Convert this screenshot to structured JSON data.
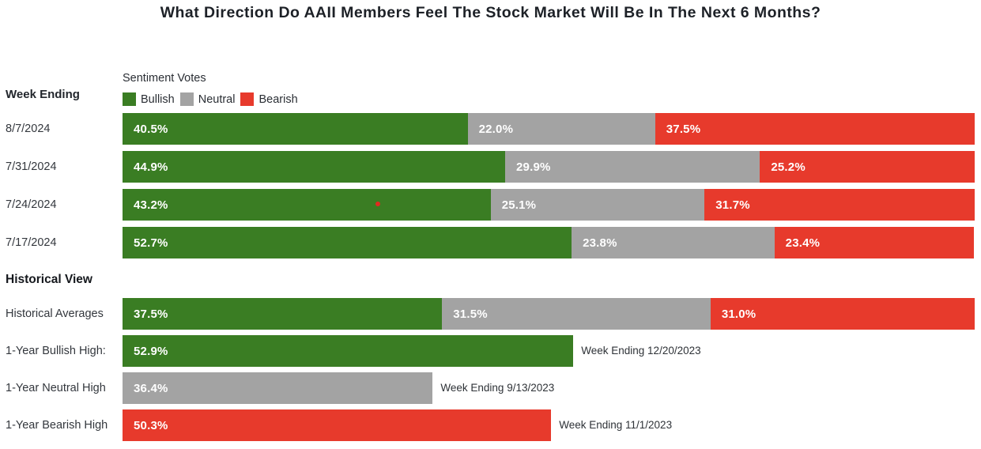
{
  "title": "What Direction Do AAII Members Feel The Stock Market Will Be In The Next 6 Months?",
  "left_column": {
    "week_ending_header": "Week Ending",
    "historical_header": "Historical View"
  },
  "legend": {
    "title": "Sentiment Votes",
    "items": [
      {
        "label": "Bullish",
        "color": "#3a7d23"
      },
      {
        "label": "Neutral",
        "color": "#a3a3a3"
      },
      {
        "label": "Bearish",
        "color": "#e73a2c"
      }
    ]
  },
  "colors": {
    "bullish": "#3a7d23",
    "neutral": "#a3a3a3",
    "bearish": "#e73a2c"
  },
  "chart_data": {
    "type": "bar",
    "orientation": "horizontal",
    "stacked": true,
    "xlim": [
      0,
      100
    ],
    "value_suffix": "%",
    "series_names": [
      "Bullish",
      "Neutral",
      "Bearish"
    ],
    "weekly": {
      "categories": [
        "8/7/2024",
        "7/31/2024",
        "7/24/2024",
        "7/17/2024"
      ],
      "series": [
        {
          "name": "Bullish",
          "values": [
            40.5,
            44.9,
            43.2,
            52.7
          ]
        },
        {
          "name": "Neutral",
          "values": [
            22.0,
            29.9,
            25.1,
            23.8
          ]
        },
        {
          "name": "Bearish",
          "values": [
            37.5,
            25.2,
            31.7,
            23.4
          ]
        }
      ]
    },
    "historical": {
      "rows": [
        {
          "label": "Historical Averages",
          "kind": "stacked",
          "values": [
            {
              "series": "bullish",
              "value": 37.5
            },
            {
              "series": "neutral",
              "value": 31.5
            },
            {
              "series": "bearish",
              "value": 31.0
            }
          ],
          "annotation": ""
        },
        {
          "label": "1-Year Bullish High:",
          "kind": "single",
          "values": [
            {
              "series": "bullish",
              "value": 52.9
            }
          ],
          "annotation": "Week Ending 12/20/2023"
        },
        {
          "label": "1-Year Neutral High",
          "kind": "single",
          "values": [
            {
              "series": "neutral",
              "value": 36.4
            }
          ],
          "annotation": "Week Ending 9/13/2023"
        },
        {
          "label": "1-Year Bearish High",
          "kind": "single",
          "values": [
            {
              "series": "bearish",
              "value": 50.3
            }
          ],
          "annotation": "Week Ending 11/1/2023"
        }
      ]
    }
  }
}
